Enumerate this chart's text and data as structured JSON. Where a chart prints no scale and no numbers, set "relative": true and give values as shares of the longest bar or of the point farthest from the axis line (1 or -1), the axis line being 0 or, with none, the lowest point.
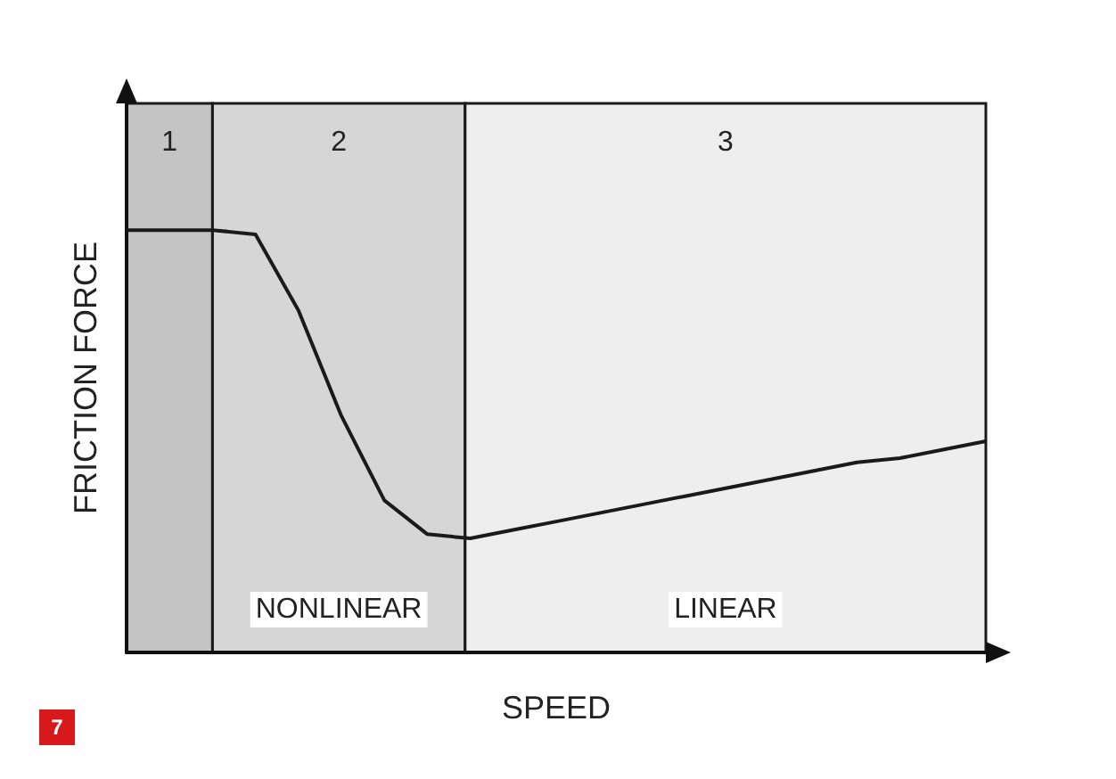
{
  "chart_data": {
    "type": "line",
    "relative": true,
    "xlabel": "SPEED",
    "ylabel": "FRICTION FORCE",
    "marker": "none",
    "line_style": "solid",
    "categories": [
      null,
      null,
      null,
      null,
      null,
      null,
      null,
      null,
      null,
      null,
      null,
      null,
      null,
      null,
      null,
      null,
      null,
      null,
      null,
      null,
      null
    ],
    "series": [
      {
        "color": "#1a1a1a",
        "values": [
          1,
          1,
          1,
          0.99,
          0.81,
          0.56,
          0.36,
          0.28,
          0.27,
          0.29,
          0.31,
          0.33,
          0.35,
          0.37,
          0.39,
          0.41,
          0.43,
          0.45,
          0.46,
          0.48,
          0.5
        ]
      }
    ],
    "annotations": [
      "1",
      "2",
      "3",
      "NONLINEAR",
      "LINEAR",
      "7"
    ]
  }
}
